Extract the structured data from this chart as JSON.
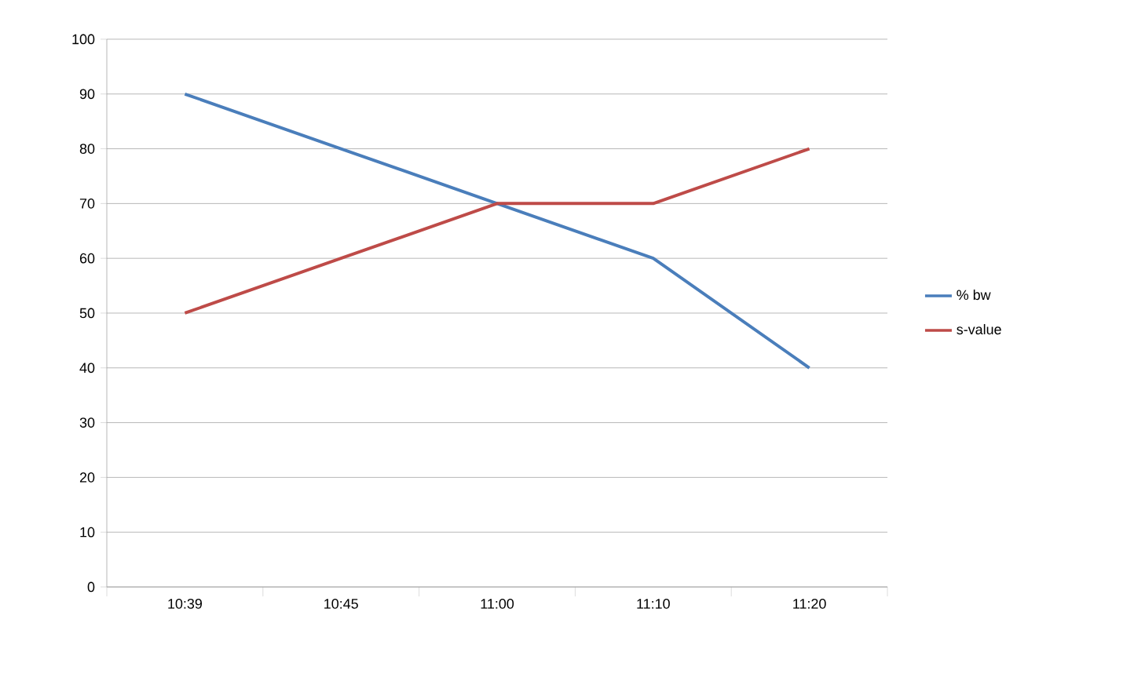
{
  "chart_data": {
    "type": "line",
    "categories": [
      "10:39",
      "10:45",
      "11:00",
      "11:10",
      "11:20"
    ],
    "series": [
      {
        "name": "% bw",
        "color": "#4a7ebb",
        "values": [
          90,
          80,
          70,
          60,
          40
        ]
      },
      {
        "name": "s-value",
        "color": "#be4b48",
        "values": [
          50,
          60,
          70,
          70,
          80
        ]
      }
    ],
    "ylim": [
      0,
      100
    ],
    "yticks": [
      0,
      10,
      20,
      30,
      40,
      50,
      60,
      70,
      80,
      90,
      100
    ],
    "grid": "y",
    "legend": "right",
    "marker": "none",
    "line_style": "solid"
  }
}
